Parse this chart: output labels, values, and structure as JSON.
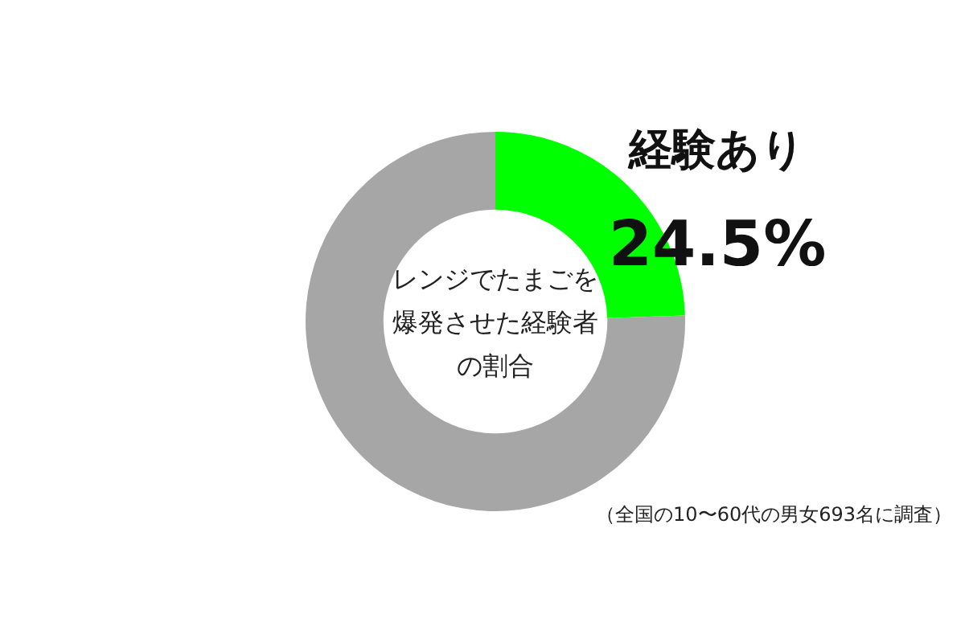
{
  "chart_data": {
    "type": "donut",
    "title": "レンジでたまごを爆発させた経験者の割合",
    "categories": [
      "経験あり",
      null
    ],
    "values": [
      24.5,
      75.5
    ],
    "colors": [
      "#00ff00",
      "#a6a6a6"
    ],
    "value_labels": [
      "24.5%",
      null
    ],
    "legend": false,
    "annotations": [
      "（全国の10〜60代の男女693名に調査）"
    ]
  }
}
